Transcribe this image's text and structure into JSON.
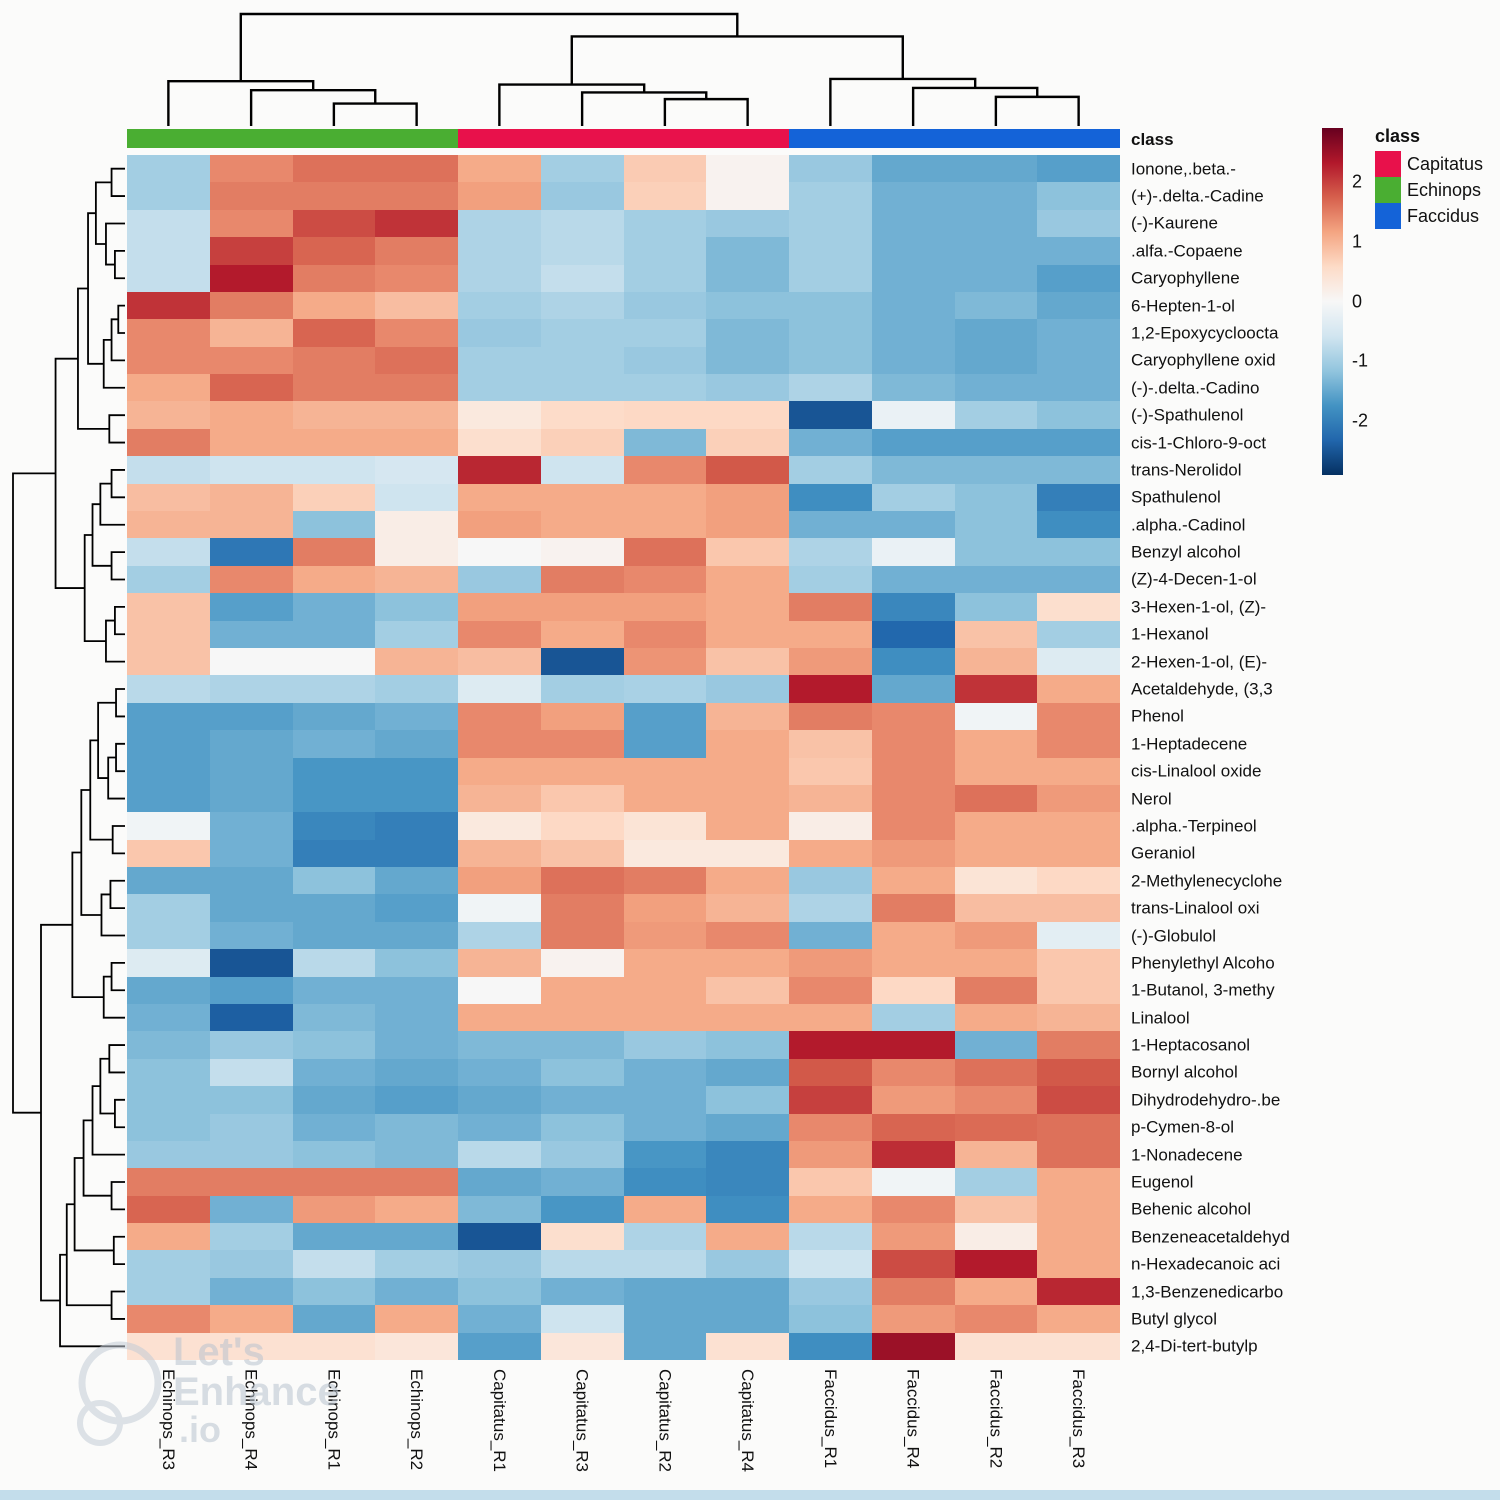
{
  "annotation": {
    "label": "class",
    "column_classes": [
      "Echinops",
      "Echinops",
      "Echinops",
      "Echinops",
      "Capitatus",
      "Capitatus",
      "Capitatus",
      "Capitatus",
      "Faccidus",
      "Faccidus",
      "Faccidus",
      "Faccidus"
    ],
    "class_colors": {
      "Capitatus": "#e8114b",
      "Echinops": "#4aae32",
      "Faccidus": "#1463d8"
    }
  },
  "legend": {
    "title": "class",
    "entries": [
      {
        "label": "Capitatus",
        "color": "#e8114b"
      },
      {
        "label": "Echinops",
        "color": "#4aae32"
      },
      {
        "label": "Faccidus",
        "color": "#1463d8"
      }
    ]
  },
  "colorbar": {
    "ticks": [
      2,
      1,
      0,
      -1,
      -2
    ]
  },
  "watermark": {
    "line1": "Let's",
    "line2": "Enhance",
    "line3": ".io"
  },
  "chart_data": {
    "type": "heatmap",
    "title": "",
    "xlabel": "",
    "ylabel": "",
    "legend_position": "top-right",
    "value_domain": [
      -2.9,
      2.9
    ],
    "palette": [
      {
        "v": -2.9,
        "color": "#053061"
      },
      {
        "v": -2.32,
        "color": "#2166ac"
      },
      {
        "v": -1.74,
        "color": "#4393c3"
      },
      {
        "v": -1.16,
        "color": "#92c5de"
      },
      {
        "v": -0.58,
        "color": "#d1e5f0"
      },
      {
        "v": 0,
        "color": "#f7f7f7"
      },
      {
        "v": 0.58,
        "color": "#fddbc7"
      },
      {
        "v": 1.16,
        "color": "#f4a582"
      },
      {
        "v": 1.74,
        "color": "#d6604d"
      },
      {
        "v": 2.32,
        "color": "#b2182b"
      },
      {
        "v": 2.9,
        "color": "#67001f"
      }
    ],
    "columns": [
      "Echinops_R3",
      "Echinops_R4",
      "Echinops_R1",
      "Echinops_R2",
      "Capitatus_R1",
      "Capitatus_R3",
      "Capitatus_R2",
      "Capitatus_R4",
      "Faccidus_R1",
      "Faccidus_R4",
      "Faccidus_R2",
      "Faccidus_R3"
    ],
    "rows": [
      "Ionone,.beta.-",
      "(+)-.delta.-Cadine",
      "(-)-Kaurene",
      ".alfa.-Copaene",
      "Caryophyllene",
      "6-Hepten-1-ol",
      "1,2-Epoxycycloocta",
      "Caryophyllene oxid",
      "(-)-.delta.-Cadino",
      "(-)-Spathulenol",
      "cis-1-Chloro-9-oct",
      "trans-Nerolidol",
      "Spathulenol",
      ".alpha.-Cadinol",
      "Benzyl alcohol",
      "(Z)-4-Decen-1-ol",
      "3-Hexen-1-ol, (Z)-",
      "1-Hexanol",
      "2-Hexen-1-ol, (E)-",
      "Acetaldehyde, (3,3",
      "Phenol",
      "1-Heptadecene",
      "cis-Linalool oxide",
      "Nerol",
      ".alpha.-Terpineol",
      "Geraniol",
      "2-Methylenecyclohe",
      "trans-Linalool oxi",
      "(-)-Globulol",
      "Phenylethyl Alcoho",
      "1-Butanol, 3-methy",
      "Linalool",
      "1-Heptacosanol",
      "Bornyl alcohol",
      "Dihydrodehydro-.be",
      "p-Cymen-8-ol",
      "1-Nonadecene",
      "Eugenol",
      "Behenic alcohol",
      "Benzeneacetaldehyd",
      "n-Hexadecanoic aci",
      "1,3-Benzenedicarbo",
      "Butyl glycol",
      "2,4-Di-tert-butylp"
    ],
    "values": [
      [
        -1.0,
        1.4,
        1.6,
        1.6,
        1.1,
        -1.0,
        0.75,
        0.1,
        -1.1,
        -1.5,
        -1.5,
        -1.6
      ],
      [
        -1.0,
        1.5,
        1.5,
        1.5,
        1.2,
        -1.1,
        0.7,
        0.1,
        -1.0,
        -1.4,
        -1.4,
        -1.2
      ],
      [
        -0.7,
        1.4,
        1.9,
        2.1,
        -0.9,
        -0.8,
        -1.0,
        -1.1,
        -1.0,
        -1.4,
        -1.4,
        -1.1
      ],
      [
        -0.7,
        2.0,
        1.7,
        1.5,
        -0.9,
        -0.8,
        -1.0,
        -1.3,
        -1.0,
        -1.4,
        -1.4,
        -1.4
      ],
      [
        -0.7,
        2.3,
        1.5,
        1.4,
        -0.9,
        -0.7,
        -1.0,
        -1.3,
        -1.0,
        -1.4,
        -1.4,
        -1.6
      ],
      [
        2.1,
        1.5,
        1.1,
        0.9,
        -1.0,
        -0.9,
        -1.1,
        -1.2,
        -1.2,
        -1.4,
        -1.3,
        -1.5
      ],
      [
        1.4,
        1.0,
        1.7,
        1.4,
        -1.1,
        -1.0,
        -1.0,
        -1.3,
        -1.2,
        -1.4,
        -1.5,
        -1.4
      ],
      [
        1.4,
        1.4,
        1.5,
        1.6,
        -1.0,
        -1.0,
        -1.1,
        -1.3,
        -1.2,
        -1.4,
        -1.5,
        -1.4
      ],
      [
        1.1,
        1.7,
        1.5,
        1.5,
        -1.0,
        -1.0,
        -1.0,
        -1.1,
        -0.9,
        -1.3,
        -1.4,
        -1.4
      ],
      [
        1.0,
        1.1,
        1.0,
        1.0,
        0.3,
        0.55,
        0.6,
        0.6,
        -2.5,
        -0.2,
        -1.0,
        -1.2
      ],
      [
        1.5,
        1.1,
        1.1,
        1.1,
        0.5,
        0.7,
        -1.3,
        0.7,
        -1.4,
        -1.6,
        -1.6,
        -1.6
      ],
      [
        -0.7,
        -0.6,
        -0.6,
        -0.5,
        2.2,
        -0.6,
        1.4,
        1.8,
        -1.0,
        -1.3,
        -1.3,
        -1.3
      ],
      [
        0.9,
        1.0,
        0.7,
        -0.6,
        1.1,
        1.1,
        1.1,
        1.2,
        -1.8,
        -1.0,
        -1.2,
        -2.0
      ],
      [
        1.0,
        1.0,
        -1.2,
        0.2,
        1.2,
        1.1,
        1.1,
        1.2,
        -1.4,
        -1.4,
        -1.2,
        -1.8
      ],
      [
        -0.7,
        -2.1,
        1.5,
        0.2,
        0.0,
        0.1,
        1.6,
        0.8,
        -0.9,
        -0.2,
        -1.2,
        -1.2
      ],
      [
        -1.0,
        1.4,
        1.1,
        1.0,
        -1.1,
        1.5,
        1.4,
        1.1,
        -1.0,
        -1.4,
        -1.4,
        -1.4
      ],
      [
        0.85,
        -1.6,
        -1.4,
        -1.2,
        1.2,
        1.2,
        1.2,
        1.1,
        1.5,
        -1.9,
        -1.2,
        0.5
      ],
      [
        0.85,
        -1.4,
        -1.4,
        -1.0,
        1.4,
        1.1,
        1.4,
        1.1,
        1.1,
        -2.3,
        0.85,
        -1.0
      ],
      [
        0.85,
        0.0,
        0.0,
        1.0,
        0.9,
        -2.5,
        1.3,
        0.85,
        1.25,
        -1.8,
        1.0,
        -0.4
      ],
      [
        -0.8,
        -0.9,
        -0.9,
        -1.0,
        -0.4,
        -1.0,
        -0.95,
        -1.1,
        2.3,
        -1.5,
        2.1,
        1.1
      ],
      [
        -1.6,
        -1.6,
        -1.5,
        -1.4,
        1.4,
        1.2,
        -1.6,
        1.0,
        1.5,
        1.4,
        -0.1,
        1.4
      ],
      [
        -1.6,
        -1.5,
        -1.4,
        -1.5,
        1.4,
        1.4,
        -1.6,
        1.1,
        0.85,
        1.4,
        1.1,
        1.4
      ],
      [
        -1.6,
        -1.5,
        -1.7,
        -1.7,
        1.1,
        1.1,
        1.1,
        1.1,
        0.8,
        1.4,
        1.1,
        1.1
      ],
      [
        -1.6,
        -1.5,
        -1.7,
        -1.7,
        1.0,
        0.8,
        1.1,
        1.1,
        1.0,
        1.4,
        1.6,
        1.25
      ],
      [
        -0.1,
        -1.4,
        -1.9,
        -2.0,
        0.3,
        0.6,
        0.4,
        1.1,
        0.2,
        1.4,
        1.1,
        1.1
      ],
      [
        0.8,
        -1.4,
        -2.0,
        -2.0,
        1.0,
        0.85,
        0.3,
        0.3,
        1.1,
        1.25,
        1.1,
        1.1
      ],
      [
        -1.5,
        -1.5,
        -1.2,
        -1.5,
        1.2,
        1.6,
        1.5,
        1.1,
        -1.1,
        1.1,
        0.4,
        0.6
      ],
      [
        -1.0,
        -1.5,
        -1.5,
        -1.6,
        -0.1,
        1.5,
        1.2,
        1.0,
        -0.9,
        1.5,
        0.9,
        0.9
      ],
      [
        -1.0,
        -1.4,
        -1.5,
        -1.5,
        -0.9,
        1.5,
        1.25,
        1.4,
        -1.4,
        1.1,
        1.25,
        -0.3
      ],
      [
        -0.4,
        -2.5,
        -0.8,
        -1.2,
        1.0,
        0.1,
        1.1,
        1.1,
        1.25,
        1.1,
        1.1,
        0.8
      ],
      [
        -1.5,
        -1.6,
        -1.4,
        -1.4,
        0.0,
        1.1,
        1.1,
        0.85,
        1.4,
        0.6,
        1.5,
        0.8
      ],
      [
        -1.4,
        -2.4,
        -1.3,
        -1.4,
        1.1,
        1.1,
        1.1,
        1.1,
        1.1,
        -1.0,
        1.1,
        1.0
      ],
      [
        -1.3,
        -1.1,
        -1.2,
        -1.4,
        -1.3,
        -1.3,
        -1.1,
        -1.2,
        2.3,
        2.3,
        -1.4,
        1.5
      ],
      [
        -1.2,
        -0.7,
        -1.4,
        -1.5,
        -1.4,
        -1.2,
        -1.4,
        -1.5,
        1.8,
        1.4,
        1.6,
        1.8
      ],
      [
        -1.2,
        -1.2,
        -1.5,
        -1.6,
        -1.5,
        -1.4,
        -1.4,
        -1.2,
        2.0,
        1.25,
        1.4,
        1.9
      ],
      [
        -1.2,
        -1.1,
        -1.4,
        -1.3,
        -1.4,
        -1.2,
        -1.4,
        -1.5,
        1.4,
        1.7,
        1.65,
        1.6
      ],
      [
        -1.1,
        -1.1,
        -1.2,
        -1.3,
        -0.8,
        -1.1,
        -1.7,
        -1.9,
        1.25,
        2.15,
        1.0,
        1.6
      ],
      [
        1.5,
        1.5,
        1.5,
        1.5,
        -1.5,
        -1.4,
        -1.8,
        -1.9,
        0.8,
        -0.1,
        -1.0,
        1.1
      ],
      [
        1.7,
        -1.4,
        1.25,
        1.1,
        -1.3,
        -1.7,
        1.1,
        -1.8,
        1.1,
        1.4,
        0.85,
        1.1
      ],
      [
        1.1,
        -1.0,
        -1.5,
        -1.5,
        -2.5,
        0.5,
        -0.9,
        1.1,
        -0.8,
        1.25,
        0.2,
        1.1
      ],
      [
        -1.0,
        -1.1,
        -0.7,
        -1.0,
        -1.1,
        -0.8,
        -0.8,
        -1.1,
        -0.6,
        1.9,
        2.3,
        1.1
      ],
      [
        -1.0,
        -1.4,
        -1.2,
        -1.4,
        -1.2,
        -1.4,
        -1.5,
        -1.5,
        -1.1,
        1.5,
        1.1,
        2.2
      ],
      [
        1.4,
        1.1,
        -1.5,
        1.1,
        -1.4,
        -0.6,
        -1.5,
        -1.5,
        -1.2,
        1.25,
        1.4,
        1.1
      ],
      [
        0.45,
        0.45,
        0.45,
        0.35,
        -1.6,
        0.35,
        -1.5,
        0.45,
        -1.8,
        2.5,
        0.45,
        0.45
      ]
    ],
    "col_dendrogram": [
      [
        "L2",
        "L3",
        0.2
      ],
      [
        "L1",
        "M0",
        0.32
      ],
      [
        "L0",
        "M1",
        0.4
      ],
      [
        "L6",
        "L7",
        0.24
      ],
      [
        "L5",
        "M3",
        0.3
      ],
      [
        "L4",
        "M4",
        0.37
      ],
      [
        "L10",
        "L11",
        0.26
      ],
      [
        "L9",
        "M6",
        0.34
      ],
      [
        "L8",
        "M7",
        0.42
      ],
      [
        "M5",
        "M8",
        0.8
      ],
      [
        "M2",
        "M9",
        1.0
      ]
    ],
    "row_dendrogram": [
      [
        "L0",
        "L1",
        0.12
      ],
      [
        "L3",
        "L4",
        0.09
      ],
      [
        "L2",
        "M1",
        0.17
      ],
      [
        "M0",
        "M2",
        0.26
      ],
      [
        "L5",
        "L6",
        0.06
      ],
      [
        "M4",
        "L7",
        0.12
      ],
      [
        "M5",
        "L8",
        0.19
      ],
      [
        "M3",
        "M6",
        0.33
      ],
      [
        "L9",
        "L10",
        0.14
      ],
      [
        "M7",
        "M8",
        0.42
      ],
      [
        "L11",
        "L12",
        0.12
      ],
      [
        "M10",
        "L13",
        0.22
      ],
      [
        "L14",
        "L15",
        0.12
      ],
      [
        "M11",
        "M12",
        0.29
      ],
      [
        "L16",
        "L17",
        0.09
      ],
      [
        "M14",
        "L18",
        0.17
      ],
      [
        "M13",
        "M15",
        0.36
      ],
      [
        "M9",
        "M16",
        0.62
      ],
      [
        "L19",
        "L20",
        0.08
      ],
      [
        "L21",
        "L22",
        0.08
      ],
      [
        "M19",
        "L23",
        0.15
      ],
      [
        "M18",
        "M20",
        0.24
      ],
      [
        "L24",
        "L25",
        0.11
      ],
      [
        "M21",
        "M22",
        0.31
      ],
      [
        "L26",
        "L27",
        0.13
      ],
      [
        "M24",
        "L28",
        0.21
      ],
      [
        "M23",
        "M25",
        0.39
      ],
      [
        "L29",
        "L30",
        0.12
      ],
      [
        "M27",
        "L31",
        0.19
      ],
      [
        "M26",
        "M28",
        0.47
      ],
      [
        "L32",
        "L33",
        0.14
      ],
      [
        "L34",
        "L35",
        0.09
      ],
      [
        "M30",
        "M31",
        0.22
      ],
      [
        "M32",
        "L36",
        0.29
      ],
      [
        "L37",
        "L38",
        0.12
      ],
      [
        "M33",
        "M34",
        0.37
      ],
      [
        "L39",
        "L40",
        0.1
      ],
      [
        "M35",
        "M36",
        0.45
      ],
      [
        "L41",
        "L42",
        0.12
      ],
      [
        "M37",
        "M38",
        0.52
      ],
      [
        "M39",
        "L43",
        0.58
      ],
      [
        "M29",
        "M40",
        0.75
      ],
      [
        "M17",
        "M41",
        1.0
      ]
    ]
  }
}
